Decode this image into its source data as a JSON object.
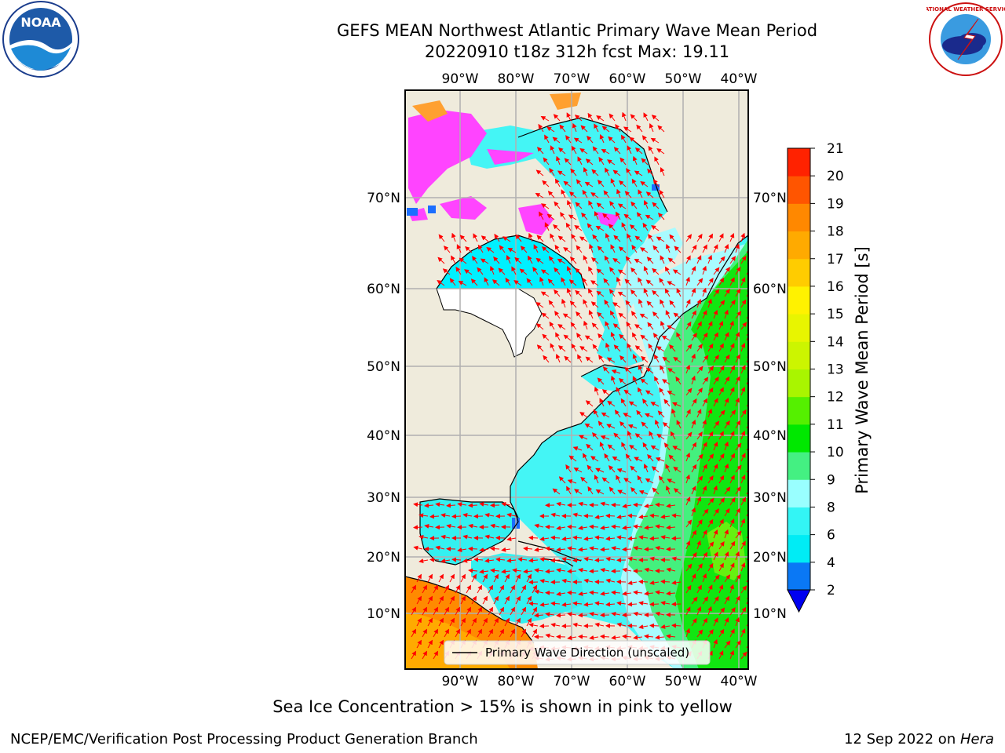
{
  "header": {
    "title_line1": "GEFS MEAN Northwest Atlantic Primary Wave Mean Period",
    "title_line2": "20220910 t18z 312h fcst   Max: 19.11"
  },
  "map": {
    "lon_labels_top": [
      "90°W",
      "80°W",
      "70°W",
      "60°W",
      "50°W",
      "40°W"
    ],
    "lon_labels_bottom": [
      "90°W",
      "80°W",
      "70°W",
      "60°W",
      "50°W",
      "40°W"
    ],
    "lat_labels_left": [
      "70°N",
      "60°N",
      "50°N",
      "40°N",
      "30°N",
      "20°N",
      "10°N"
    ],
    "lat_labels_right": [
      "70°N",
      "60°N",
      "50°N",
      "40°N",
      "30°N",
      "20°N",
      "10°N"
    ],
    "legend_label": "Primary Wave Direction (unscaled)",
    "arrow_color": "#ff0000",
    "land_color": "#efebdc",
    "ice_color": "#ff44ff"
  },
  "colorbar": {
    "label": "Primary Wave Mean Period [s]",
    "ticks": [
      "2",
      "4",
      "6",
      "8",
      "9",
      "10",
      "11",
      "12",
      "13",
      "14",
      "15",
      "16",
      "17",
      "18",
      "19",
      "20",
      "21"
    ],
    "colors": [
      "#0a78f5",
      "#00ecf5",
      "#33f5f5",
      "#99ffff",
      "#44f082",
      "#00e800",
      "#55f000",
      "#a9f500",
      "#ccf500",
      "#e8f500",
      "#fff200",
      "#ffcc00",
      "#ffaa00",
      "#ff8800",
      "#ff5500",
      "#ff2200"
    ],
    "extend_color": "#0000f0"
  },
  "notes": {
    "sea_ice": "Sea Ice Concentration > 15% is shown in pink to yellow"
  },
  "footer": {
    "left": "NCEP/EMC/Verification Post Processing Product Generation Branch",
    "date": "12 Sep 2022 on ",
    "machine": "Hera"
  },
  "logos": {
    "noaa_text": "NOAA",
    "nws_text": "NATIONAL WEATHER SERVICE"
  }
}
